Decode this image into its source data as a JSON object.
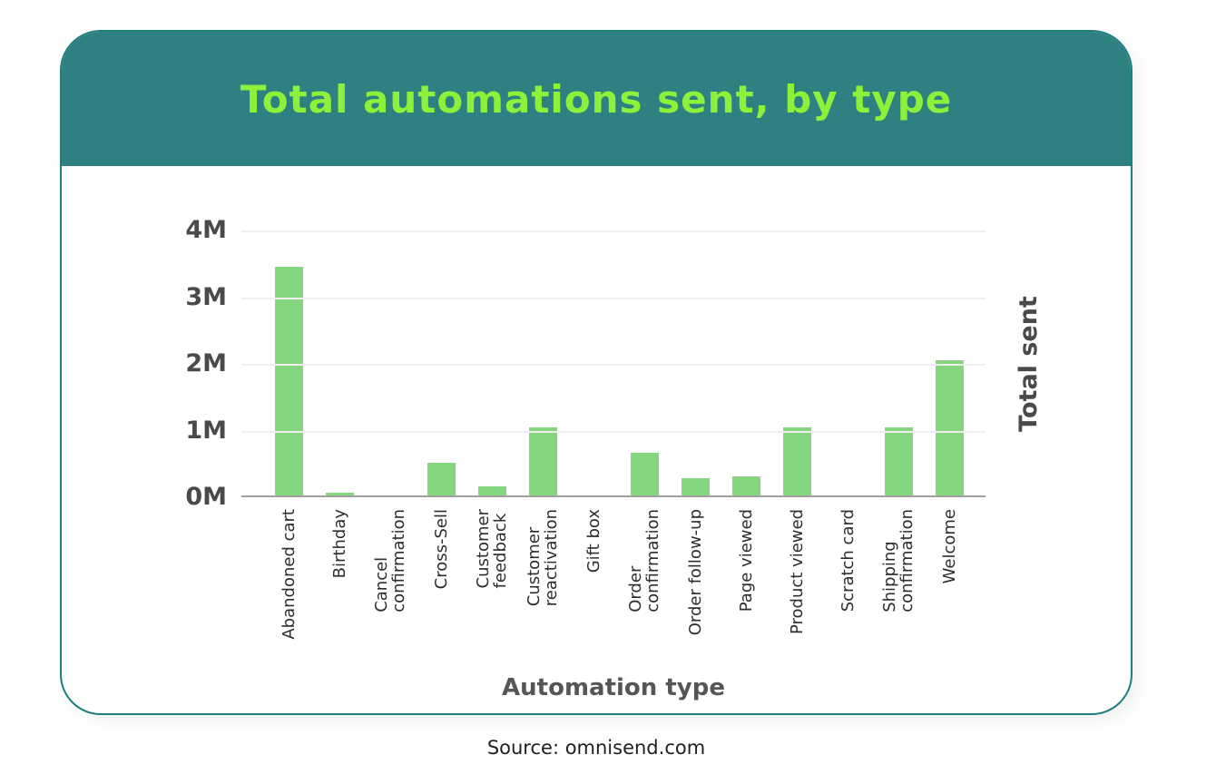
{
  "header": {
    "title": "Total automations sent, by type"
  },
  "chart_data": {
    "type": "bar",
    "title": "Total automations sent, by type",
    "xlabel": "Automation type",
    "ylabel": "Total sent",
    "categories": [
      "Abandoned cart",
      "Birthday",
      "Cancel\nconfirmation",
      "Cross-Sell",
      "Customer\nfeedback",
      "Customer\nreactivation",
      "Gift box",
      "Order\nconfirmation",
      "Order follow-up",
      "Page viewed",
      "Product viewed",
      "Scratch card",
      "Shipping\nconfirmation",
      "Welcome"
    ],
    "values_millions": [
      3.45,
      0.07,
      0,
      0.52,
      0.16,
      1.05,
      0,
      0.66,
      0.28,
      0.31,
      1.05,
      0,
      1.05,
      2.05
    ],
    "yticks": [
      "4M",
      "3M",
      "2M",
      "1M",
      "0M"
    ],
    "ylim": [
      0,
      4
    ],
    "grid": true,
    "legend": "none",
    "bar_color": "#85d67e"
  },
  "footer": {
    "source": "Source: omnisend.com"
  },
  "colors": {
    "header_bg": "#2f8181",
    "title": "#8df03b",
    "card_border": "#1e7e80",
    "bar": "#85d67e",
    "axis_text": "#4a4a4a",
    "label_text": "#2d2d2d",
    "baseline": "#9f9f9f",
    "gridline": "#efefef"
  }
}
